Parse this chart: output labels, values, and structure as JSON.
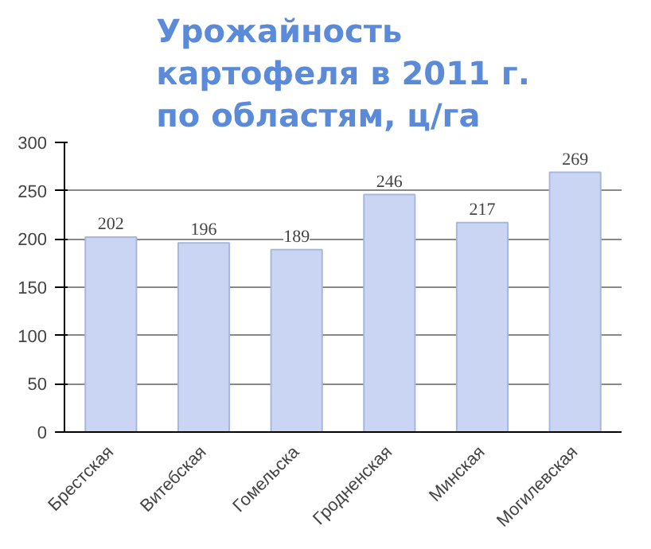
{
  "chart_data": {
    "type": "bar",
    "title": "Урожайность\nкартофеля в 2011 г.\nпо областям, ц/га",
    "categories": [
      "Брестская",
      "Витебская",
      "Гомельска",
      "Гродненская",
      "Минская",
      "Могилевская"
    ],
    "values": [
      202,
      196,
      189,
      246,
      217,
      269
    ],
    "color": "#c9d5f2",
    "ylim": [
      0,
      300
    ],
    "yticks": [
      0,
      50,
      100,
      150,
      200,
      250,
      300
    ],
    "grid": "y",
    "data_labels": true
  }
}
